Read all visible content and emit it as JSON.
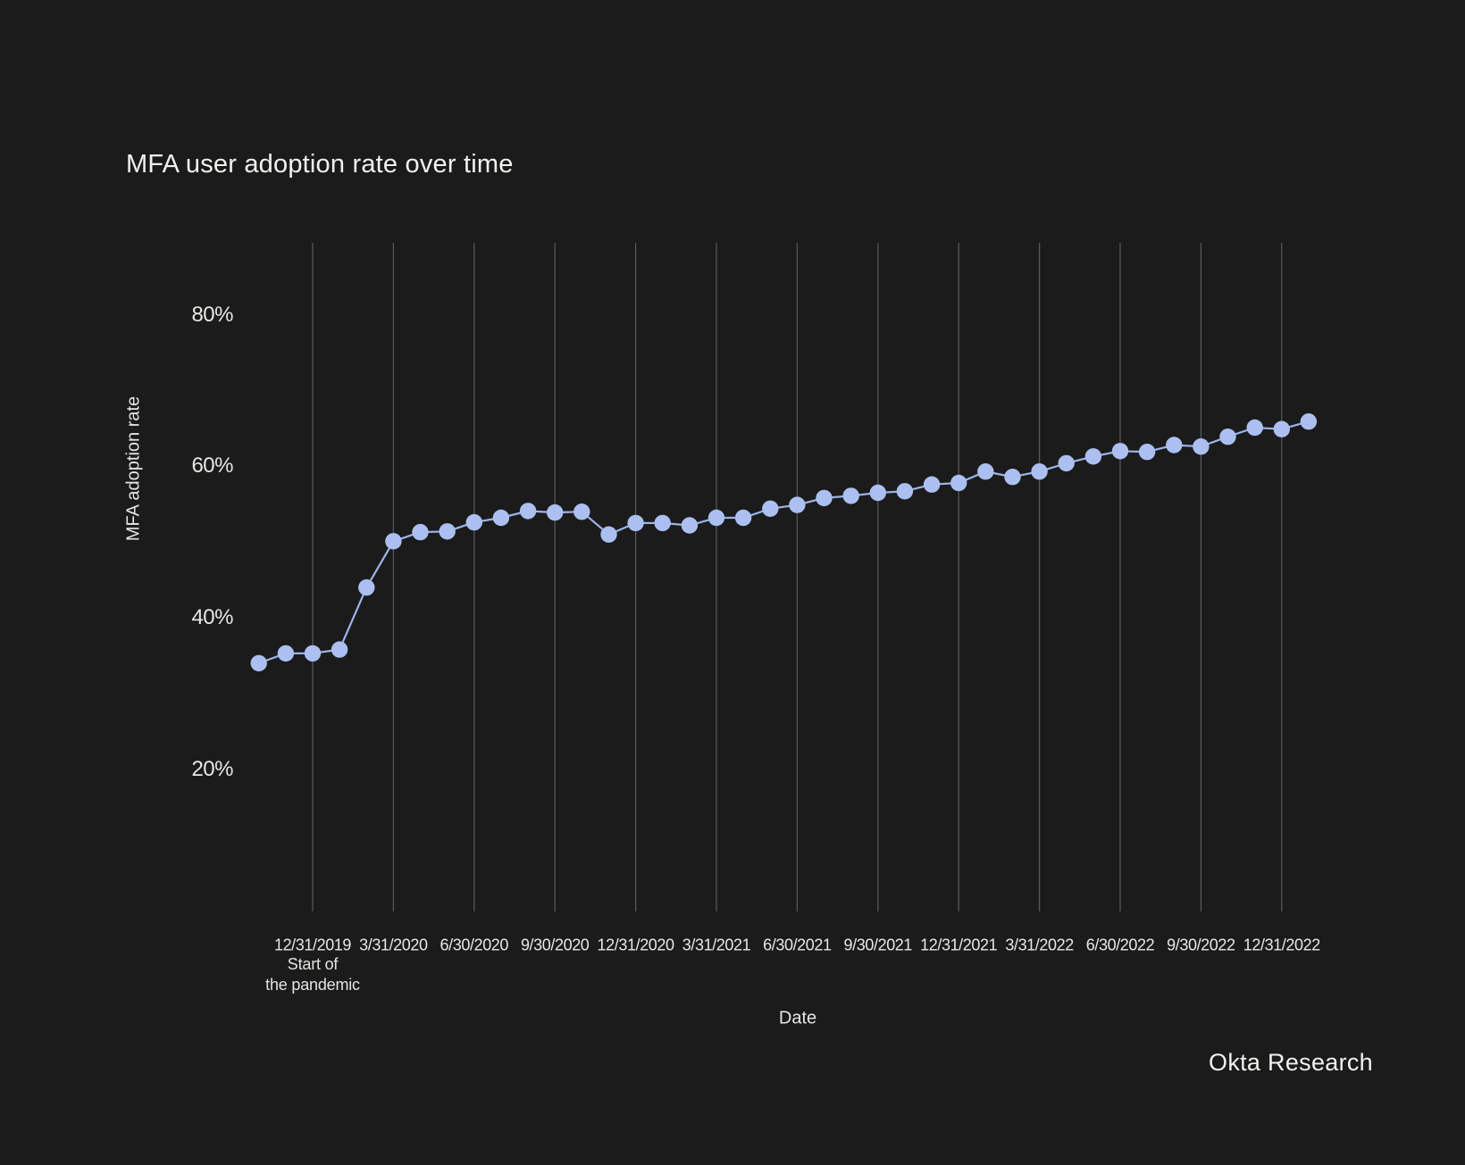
{
  "page": {
    "background_color": "#1b1b1b"
  },
  "header": {
    "title": "MFA user adoption rate over time"
  },
  "footer": {
    "attribution": "Okta Research"
  },
  "chart_data": {
    "type": "line",
    "title": "MFA user adoption rate over time",
    "xlabel": "Date",
    "ylabel": "MFA adoption rate",
    "grid": "vertical-only",
    "legend_position": "none",
    "y_unit": "%",
    "y_tick_labels": [
      "80%",
      "60%",
      "40%",
      "20%"
    ],
    "y_tick_values": [
      80,
      60,
      40,
      20
    ],
    "x_tick_labels": [
      "12/31/2019",
      "3/31/2020",
      "6/30/2020",
      "9/30/2020",
      "12/31/2020",
      "3/31/2021",
      "6/30/2021",
      "9/30/2021",
      "12/31/2021",
      "3/31/2022",
      "6/30/2022",
      "9/30/2022",
      "12/31/2022"
    ],
    "annotation": {
      "line1": "Start of",
      "line2": "the pandemic",
      "anchor_x_label": "12/31/2019"
    },
    "series": [
      {
        "name": "MFA adoption rate",
        "x": [
          "10/31/2019",
          "11/30/2019",
          "12/31/2019",
          "1/31/2020",
          "2/29/2020",
          "3/31/2020",
          "4/30/2020",
          "5/31/2020",
          "6/30/2020",
          "7/31/2020",
          "8/31/2020",
          "9/30/2020",
          "10/31/2020",
          "11/30/2020",
          "12/31/2020",
          "1/31/2021",
          "2/28/2021",
          "3/31/2021",
          "4/30/2021",
          "5/31/2021",
          "6/30/2021",
          "7/31/2021",
          "8/31/2021",
          "9/30/2021",
          "10/31/2021",
          "11/30/2021",
          "12/31/2021",
          "1/31/2022",
          "2/28/2022",
          "3/31/2022",
          "4/30/2022",
          "5/31/2022",
          "6/30/2022",
          "7/31/2022",
          "8/31/2022",
          "9/30/2022",
          "10/31/2022",
          "11/30/2022",
          "12/31/2022",
          "1/31/2023"
        ],
        "y": [
          34,
          35.3,
          35.3,
          35.8,
          44,
          50.1,
          51.3,
          51.4,
          52.6,
          53.2,
          54.1,
          53.9,
          54,
          51,
          52.5,
          52.5,
          52.2,
          53.2,
          53.2,
          54.4,
          54.9,
          55.8,
          56.1,
          56.5,
          56.7,
          57.6,
          57.8,
          59.3,
          58.6,
          59.3,
          60.4,
          61.3,
          62,
          61.9,
          62.8,
          62.6,
          63.9,
          65.1,
          64.9,
          65.9
        ]
      }
    ],
    "colors": {
      "background": "#1b1b1b",
      "line": "#9cb4ea",
      "marker": "#abc0f0",
      "gridline": "#56565a",
      "text_primary": "#f3f1ee",
      "text_secondary": "#e9e7e4"
    }
  }
}
